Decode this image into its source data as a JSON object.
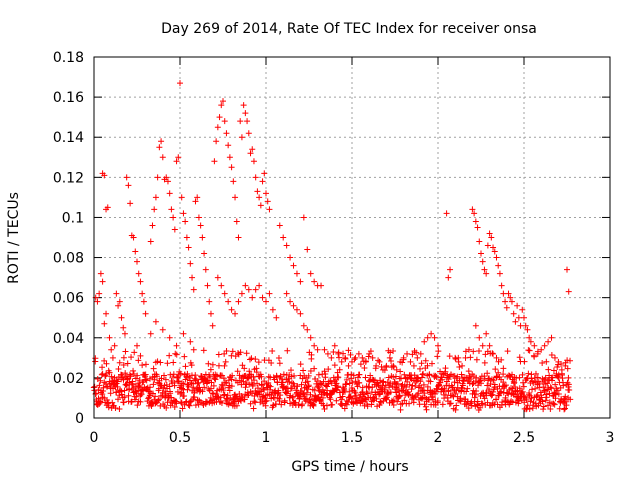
{
  "chart_data": {
    "type": "scatter",
    "title": "Day 269 of 2014, Rate Of TEC Index for receiver onsa",
    "xlabel": "GPS time / hours",
    "ylabel": "ROTI / TECUs",
    "xlim": [
      0,
      3
    ],
    "ylim": [
      0,
      0.18
    ],
    "x_ticks": [
      0,
      0.5,
      1,
      1.5,
      2,
      2.5,
      3
    ],
    "x_tick_labels": [
      "0",
      "0.5",
      "1",
      "1.5",
      "2",
      "2.5",
      "3"
    ],
    "y_ticks": [
      0,
      0.02,
      0.04,
      0.06,
      0.08,
      0.1,
      0.12,
      0.14,
      0.16,
      0.18
    ],
    "y_tick_labels": [
      "0",
      "0.02",
      "0.04",
      "0.06",
      "0.08",
      "0.1",
      "0.12",
      "0.14",
      "0.16",
      "0.18"
    ],
    "grid": true,
    "marker": "+",
    "color": "#ff0000",
    "series": [
      {
        "name": "ROTI",
        "points": [
          [
            0.01,
            0.06
          ],
          [
            0.02,
            0.058
          ],
          [
            0.03,
            0.062
          ],
          [
            0.04,
            0.072
          ],
          [
            0.05,
            0.068
          ],
          [
            0.05,
            0.122
          ],
          [
            0.06,
            0.121
          ],
          [
            0.07,
            0.104
          ],
          [
            0.08,
            0.105
          ],
          [
            0.06,
            0.047
          ],
          [
            0.07,
            0.052
          ],
          [
            0.09,
            0.04
          ],
          [
            0.1,
            0.034
          ],
          [
            0.11,
            0.03
          ],
          [
            0.12,
            0.036
          ],
          [
            0.13,
            0.062
          ],
          [
            0.14,
            0.056
          ],
          [
            0.15,
            0.058
          ],
          [
            0.16,
            0.05
          ],
          [
            0.17,
            0.045
          ],
          [
            0.18,
            0.042
          ],
          [
            0.19,
            0.12
          ],
          [
            0.2,
            0.116
          ],
          [
            0.21,
            0.107
          ],
          [
            0.22,
            0.091
          ],
          [
            0.23,
            0.09
          ],
          [
            0.24,
            0.083
          ],
          [
            0.25,
            0.078
          ],
          [
            0.26,
            0.072
          ],
          [
            0.27,
            0.068
          ],
          [
            0.28,
            0.062
          ],
          [
            0.29,
            0.058
          ],
          [
            0.3,
            0.052
          ],
          [
            0.25,
            0.036
          ],
          [
            0.27,
            0.031
          ],
          [
            0.33,
            0.088
          ],
          [
            0.34,
            0.096
          ],
          [
            0.35,
            0.104
          ],
          [
            0.36,
            0.11
          ],
          [
            0.37,
            0.12
          ],
          [
            0.38,
            0.135
          ],
          [
            0.39,
            0.138
          ],
          [
            0.4,
            0.13
          ],
          [
            0.41,
            0.119
          ],
          [
            0.42,
            0.12
          ],
          [
            0.43,
            0.118
          ],
          [
            0.44,
            0.112
          ],
          [
            0.45,
            0.104
          ],
          [
            0.46,
            0.1
          ],
          [
            0.47,
            0.094
          ],
          [
            0.48,
            0.128
          ],
          [
            0.49,
            0.13
          ],
          [
            0.5,
            0.167
          ],
          [
            0.51,
            0.11
          ],
          [
            0.52,
            0.102
          ],
          [
            0.53,
            0.098
          ],
          [
            0.54,
            0.09
          ],
          [
            0.55,
            0.085
          ],
          [
            0.56,
            0.077
          ],
          [
            0.57,
            0.07
          ],
          [
            0.58,
            0.064
          ],
          [
            0.59,
            0.108
          ],
          [
            0.6,
            0.11
          ],
          [
            0.61,
            0.1
          ],
          [
            0.62,
            0.096
          ],
          [
            0.63,
            0.09
          ],
          [
            0.64,
            0.082
          ],
          [
            0.65,
            0.074
          ],
          [
            0.66,
            0.066
          ],
          [
            0.67,
            0.058
          ],
          [
            0.68,
            0.052
          ],
          [
            0.69,
            0.046
          ],
          [
            0.33,
            0.042
          ],
          [
            0.36,
            0.048
          ],
          [
            0.4,
            0.044
          ],
          [
            0.44,
            0.04
          ],
          [
            0.48,
            0.036
          ],
          [
            0.52,
            0.042
          ],
          [
            0.56,
            0.038
          ],
          [
            0.58,
            0.034
          ],
          [
            0.7,
            0.128
          ],
          [
            0.71,
            0.138
          ],
          [
            0.72,
            0.145
          ],
          [
            0.73,
            0.15
          ],
          [
            0.74,
            0.156
          ],
          [
            0.75,
            0.158
          ],
          [
            0.76,
            0.148
          ],
          [
            0.77,
            0.142
          ],
          [
            0.78,
            0.136
          ],
          [
            0.79,
            0.13
          ],
          [
            0.8,
            0.125
          ],
          [
            0.81,
            0.118
          ],
          [
            0.82,
            0.11
          ],
          [
            0.83,
            0.098
          ],
          [
            0.84,
            0.09
          ],
          [
            0.85,
            0.148
          ],
          [
            0.86,
            0.14
          ],
          [
            0.87,
            0.156
          ],
          [
            0.88,
            0.152
          ],
          [
            0.89,
            0.148
          ],
          [
            0.9,
            0.142
          ],
          [
            0.91,
            0.132
          ],
          [
            0.92,
            0.134
          ],
          [
            0.93,
            0.128
          ],
          [
            0.94,
            0.12
          ],
          [
            0.95,
            0.113
          ],
          [
            0.96,
            0.11
          ],
          [
            0.97,
            0.106
          ],
          [
            0.98,
            0.118
          ],
          [
            0.99,
            0.122
          ],
          [
            1.0,
            0.112
          ],
          [
            1.01,
            0.108
          ],
          [
            1.02,
            0.104
          ],
          [
            0.72,
            0.07
          ],
          [
            0.74,
            0.066
          ],
          [
            0.76,
            0.062
          ],
          [
            0.78,
            0.058
          ],
          [
            0.8,
            0.054
          ],
          [
            0.82,
            0.052
          ],
          [
            0.84,
            0.058
          ],
          [
            0.86,
            0.062
          ],
          [
            0.88,
            0.066
          ],
          [
            0.9,
            0.064
          ],
          [
            0.92,
            0.06
          ],
          [
            0.94,
            0.064
          ],
          [
            0.96,
            0.066
          ],
          [
            0.98,
            0.06
          ],
          [
            1.0,
            0.058
          ],
          [
            1.02,
            0.062
          ],
          [
            1.04,
            0.054
          ],
          [
            1.06,
            0.05
          ],
          [
            1.08,
            0.096
          ],
          [
            1.1,
            0.09
          ],
          [
            1.12,
            0.086
          ],
          [
            1.14,
            0.08
          ],
          [
            1.16,
            0.076
          ],
          [
            1.18,
            0.072
          ],
          [
            1.2,
            0.068
          ],
          [
            1.22,
            0.1
          ],
          [
            1.24,
            0.084
          ],
          [
            1.26,
            0.072
          ],
          [
            1.28,
            0.068
          ],
          [
            1.3,
            0.066
          ],
          [
            1.32,
            0.066
          ],
          [
            1.12,
            0.062
          ],
          [
            1.14,
            0.058
          ],
          [
            1.16,
            0.056
          ],
          [
            1.18,
            0.054
          ],
          [
            1.2,
            0.052
          ],
          [
            1.22,
            0.046
          ],
          [
            1.24,
            0.044
          ],
          [
            1.26,
            0.04
          ],
          [
            1.28,
            0.036
          ],
          [
            1.3,
            0.034
          ],
          [
            1.34,
            0.034
          ],
          [
            1.36,
            0.032
          ],
          [
            1.38,
            0.03
          ],
          [
            1.4,
            0.036
          ],
          [
            1.42,
            0.032
          ],
          [
            1.44,
            0.028
          ],
          [
            1.46,
            0.03
          ],
          [
            1.48,
            0.026
          ],
          [
            1.5,
            0.028
          ],
          [
            1.52,
            0.03
          ],
          [
            1.54,
            0.032
          ],
          [
            1.56,
            0.03
          ],
          [
            1.58,
            0.028
          ],
          [
            1.6,
            0.032
          ],
          [
            1.62,
            0.03
          ],
          [
            1.64,
            0.026
          ],
          [
            1.66,
            0.028
          ],
          [
            1.68,
            0.024
          ],
          [
            1.7,
            0.026
          ],
          [
            1.72,
            0.03
          ],
          [
            1.74,
            0.026
          ],
          [
            1.76,
            0.024
          ],
          [
            1.78,
            0.028
          ],
          [
            1.8,
            0.03
          ],
          [
            1.82,
            0.032
          ],
          [
            1.84,
            0.028
          ],
          [
            1.86,
            0.026
          ],
          [
            1.88,
            0.03
          ],
          [
            1.9,
            0.032
          ],
          [
            1.92,
            0.038
          ],
          [
            1.94,
            0.04
          ],
          [
            1.96,
            0.042
          ],
          [
            1.98,
            0.04
          ],
          [
            2.0,
            0.036
          ],
          [
            2.05,
            0.102
          ],
          [
            2.07,
            0.074
          ],
          [
            2.06,
            0.07
          ],
          [
            2.1,
            0.03
          ],
          [
            2.12,
            0.028
          ],
          [
            2.14,
            0.026
          ],
          [
            2.16,
            0.03
          ],
          [
            2.18,
            0.034
          ],
          [
            2.2,
            0.104
          ],
          [
            2.21,
            0.102
          ],
          [
            2.22,
            0.098
          ],
          [
            2.23,
            0.095
          ],
          [
            2.24,
            0.088
          ],
          [
            2.25,
            0.082
          ],
          [
            2.26,
            0.078
          ],
          [
            2.27,
            0.074
          ],
          [
            2.28,
            0.072
          ],
          [
            2.29,
            0.086
          ],
          [
            2.3,
            0.092
          ],
          [
            2.31,
            0.09
          ],
          [
            2.32,
            0.085
          ],
          [
            2.33,
            0.083
          ],
          [
            2.34,
            0.08
          ],
          [
            2.35,
            0.076
          ],
          [
            2.36,
            0.072
          ],
          [
            2.37,
            0.066
          ],
          [
            2.38,
            0.062
          ],
          [
            2.39,
            0.058
          ],
          [
            2.4,
            0.055
          ],
          [
            2.41,
            0.062
          ],
          [
            2.42,
            0.06
          ],
          [
            2.43,
            0.058
          ],
          [
            2.44,
            0.052
          ],
          [
            2.45,
            0.048
          ],
          [
            2.46,
            0.056
          ],
          [
            2.47,
            0.05
          ],
          [
            2.48,
            0.046
          ],
          [
            2.49,
            0.054
          ],
          [
            2.5,
            0.05
          ],
          [
            2.51,
            0.046
          ],
          [
            2.52,
            0.044
          ],
          [
            2.53,
            0.04
          ],
          [
            2.54,
            0.038
          ],
          [
            2.22,
            0.046
          ],
          [
            2.24,
            0.04
          ],
          [
            2.26,
            0.036
          ],
          [
            2.28,
            0.042
          ],
          [
            2.3,
            0.036
          ],
          [
            2.32,
            0.032
          ],
          [
            2.34,
            0.03
          ],
          [
            2.56,
            0.036
          ],
          [
            2.58,
            0.032
          ],
          [
            2.6,
            0.034
          ],
          [
            2.62,
            0.036
          ],
          [
            2.64,
            0.038
          ],
          [
            2.66,
            0.04
          ],
          [
            2.68,
            0.03
          ],
          [
            2.7,
            0.028
          ],
          [
            2.72,
            0.024
          ],
          [
            2.74,
            0.026
          ],
          [
            2.75,
            0.074
          ],
          [
            2.76,
            0.063
          ]
        ]
      }
    ],
    "baseline_band": {
      "description": "dense low-level ROTI scatter along the whole time range",
      "x_range": [
        0.0,
        2.77
      ],
      "y_range": [
        0.004,
        0.034
      ]
    }
  }
}
